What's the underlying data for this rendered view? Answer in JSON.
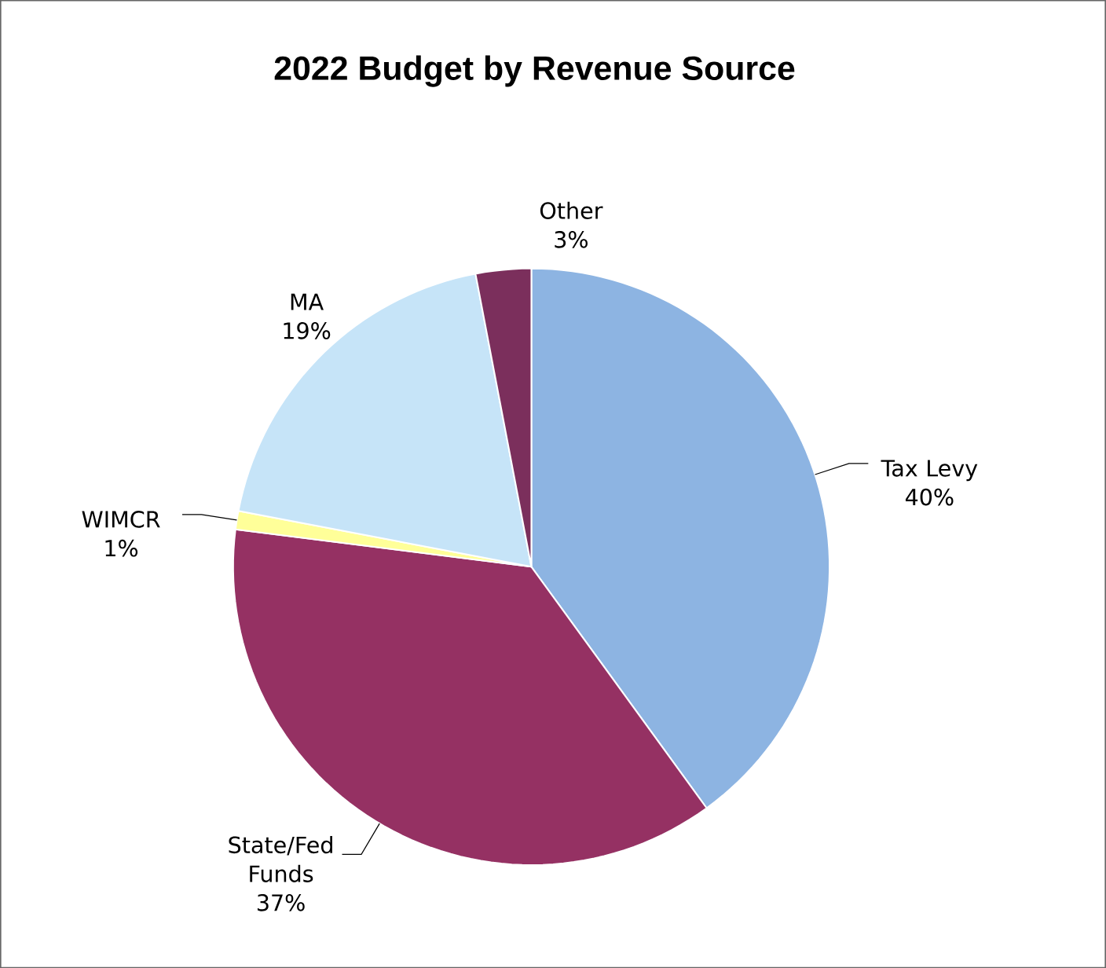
{
  "chart_data": {
    "type": "pie",
    "title": "2022 Budget by Revenue Source",
    "categories": [
      "Tax Levy",
      "State/Fed Funds",
      "WIMCR",
      "MA",
      "Other"
    ],
    "values": [
      40,
      37,
      1,
      19,
      3
    ],
    "value_labels": [
      "40%",
      "37%",
      "1%",
      "19%",
      "3%"
    ],
    "colors": [
      "#8db4e2",
      "#953163",
      "#ffff99",
      "#c6e4f8",
      "#7b2f5c"
    ]
  }
}
